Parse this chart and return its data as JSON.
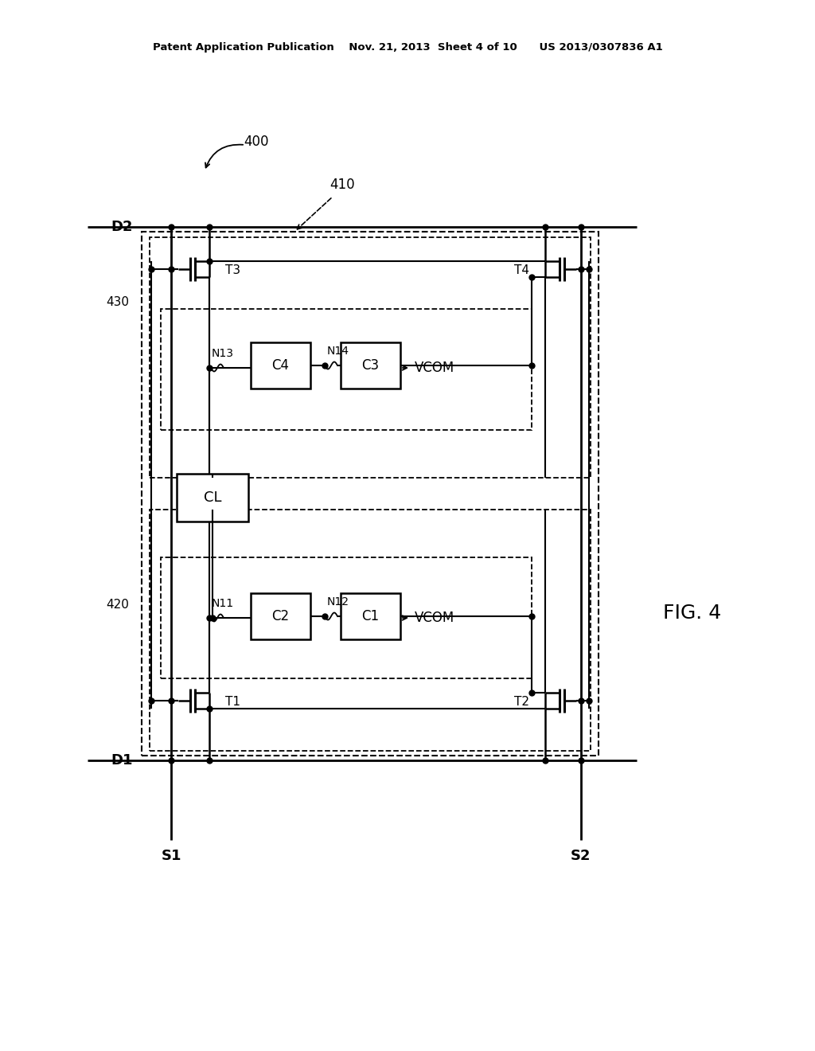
{
  "bg_color": "#ffffff",
  "header_text": "Patent Application Publication    Nov. 21, 2013  Sheet 4 of 10      US 2013/0307836 A1",
  "fig_label": "FIG. 4",
  "label_400": "400",
  "label_410": "410",
  "label_430": "430",
  "label_420": "420",
  "label_D1": "D1",
  "label_D2": "D2",
  "label_S1": "S1",
  "label_S2": "S2",
  "label_T1": "T1",
  "label_T2": "T2",
  "label_T3": "T3",
  "label_T4": "T4",
  "label_N11": "N11",
  "label_N12": "N12",
  "label_N13": "N13",
  "label_N14": "N14",
  "label_C1": "C1",
  "label_C2": "C2",
  "label_C3": "C3",
  "label_C4": "C4",
  "label_CL": "CL",
  "label_VCOM": "VCOM"
}
